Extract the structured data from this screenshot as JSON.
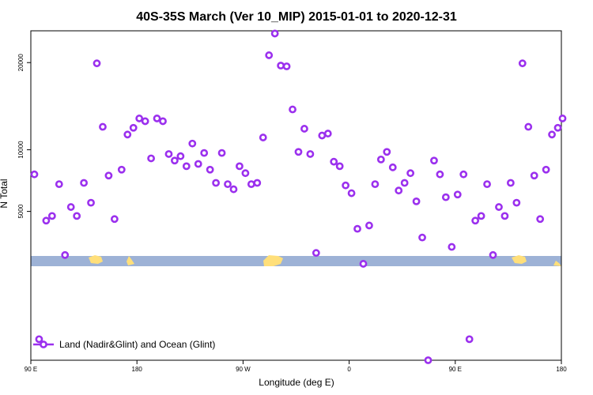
{
  "chart_data": {
    "type": "scatter",
    "title": "40S-35S March (Ver 10_MIP)   2015-01-01 to 2020-12-31",
    "xlabel": "Longitude (deg E)",
    "ylabel": "N Total",
    "x_ticks": [
      {
        "value": 90,
        "label": "90 E"
      },
      {
        "value": 180,
        "label": "180"
      },
      {
        "value": 270,
        "label": "90 W"
      },
      {
        "value": 360,
        "label": "0"
      },
      {
        "value": 450,
        "label": "90 E"
      },
      {
        "value": 540,
        "label": "180"
      }
    ],
    "y_ticks": [
      {
        "value": 5000,
        "label": "5000"
      },
      {
        "value": 10000,
        "label": "10000"
      },
      {
        "value": 20000,
        "label": "20000"
      }
    ],
    "xlim": [
      90,
      540
    ],
    "ylim": [
      0,
      24500
    ],
    "y_scale": "sqrt",
    "grid": false,
    "legend_position": "bottom-left",
    "colors": {
      "series": "#9b30ee",
      "ocean_band": "#9db2d6",
      "land": "#ffdf7a"
    },
    "series": [
      {
        "name": "Land (Nadir&Glint) and Ocean (Glint)",
        "points": [
          [
            93,
            7800
          ],
          [
            97,
            100
          ],
          [
            103,
            4400
          ],
          [
            108,
            4700
          ],
          [
            114,
            7000
          ],
          [
            119,
            2500
          ],
          [
            124,
            5300
          ],
          [
            129,
            4700
          ],
          [
            135,
            7100
          ],
          [
            141,
            5600
          ],
          [
            146,
            19900
          ],
          [
            151,
            12300
          ],
          [
            156,
            7700
          ],
          [
            161,
            4500
          ],
          [
            167,
            8200
          ],
          [
            172,
            11500
          ],
          [
            177,
            12200
          ],
          [
            182,
            13200
          ],
          [
            187,
            12900
          ],
          [
            192,
            9200
          ],
          [
            197,
            13200
          ],
          [
            202,
            12900
          ],
          [
            207,
            9600
          ],
          [
            212,
            9000
          ],
          [
            217,
            9400
          ],
          [
            222,
            8500
          ],
          [
            227,
            10600
          ],
          [
            232,
            8700
          ],
          [
            237,
            9700
          ],
          [
            242,
            8200
          ],
          [
            247,
            7100
          ],
          [
            252,
            9700
          ],
          [
            257,
            7000
          ],
          [
            262,
            6600
          ],
          [
            267,
            8500
          ],
          [
            272,
            7900
          ],
          [
            277,
            7000
          ],
          [
            282,
            7100
          ],
          [
            287,
            11200
          ],
          [
            292,
            21000
          ],
          [
            297,
            24100
          ],
          [
            302,
            19600
          ],
          [
            307,
            19500
          ],
          [
            312,
            14200
          ],
          [
            317,
            9800
          ],
          [
            322,
            12100
          ],
          [
            327,
            9600
          ],
          [
            332,
            2600
          ],
          [
            337,
            11400
          ],
          [
            342,
            11600
          ],
          [
            347,
            8900
          ],
          [
            352,
            8500
          ],
          [
            357,
            6900
          ],
          [
            362,
            6300
          ],
          [
            367,
            3900
          ],
          [
            372,
            2100
          ],
          [
            377,
            4100
          ],
          [
            382,
            7000
          ],
          [
            387,
            9100
          ],
          [
            392,
            9800
          ],
          [
            397,
            8400
          ],
          [
            402,
            6500
          ],
          [
            407,
            7100
          ],
          [
            412,
            7900
          ],
          [
            417,
            5700
          ],
          [
            422,
            3400
          ],
          [
            427,
            0
          ],
          [
            432,
            9000
          ],
          [
            437,
            7800
          ],
          [
            442,
            6000
          ],
          [
            447,
            2900
          ],
          [
            452,
            6200
          ],
          [
            457,
            7800
          ],
          [
            462,
            100
          ],
          [
            467,
            4400
          ],
          [
            472,
            4700
          ],
          [
            477,
            7000
          ],
          [
            482,
            2500
          ],
          [
            487,
            5300
          ],
          [
            492,
            4700
          ],
          [
            497,
            7100
          ],
          [
            502,
            5600
          ],
          [
            507,
            19900
          ],
          [
            512,
            12300
          ],
          [
            517,
            7700
          ],
          [
            522,
            4500
          ],
          [
            527,
            8200
          ],
          [
            532,
            11500
          ],
          [
            537,
            12200
          ],
          [
            541,
            13200
          ]
        ]
      }
    ]
  }
}
